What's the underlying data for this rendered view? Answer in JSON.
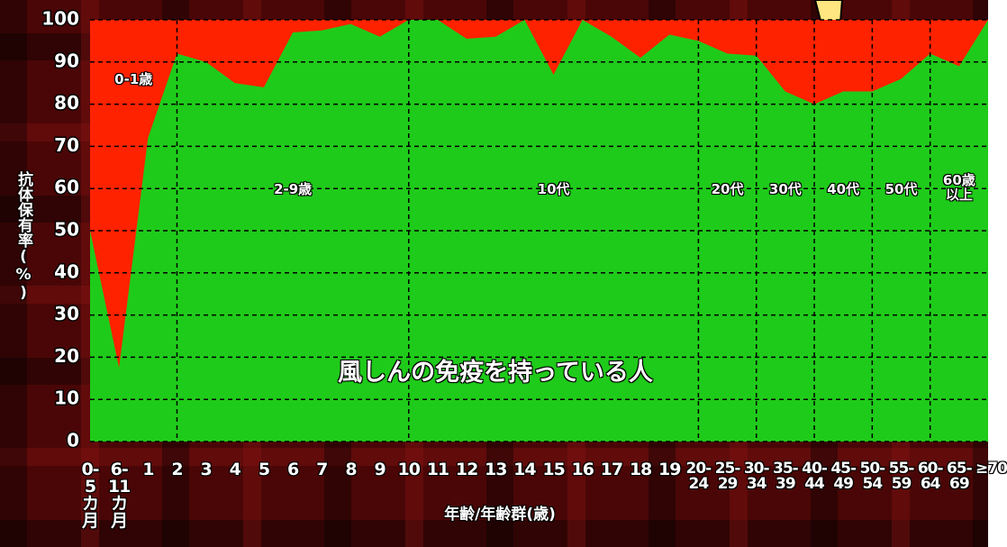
{
  "chart_data": {
    "type": "area",
    "y_label": "抗体保有率(%)",
    "x_label": "年齢/年齢群(歳)",
    "categories": [
      "0-5カ月",
      "6-11カ月",
      "1",
      "2",
      "3",
      "4",
      "5",
      "6",
      "7",
      "8",
      "9",
      "10",
      "11",
      "12",
      "13",
      "14",
      "15",
      "16",
      "17",
      "18",
      "19",
      "20-24",
      "25-29",
      "30-34",
      "35-39",
      "40-44",
      "45-49",
      "50-54",
      "55-59",
      "60-64",
      "65-69",
      "≥70"
    ],
    "series": [
      {
        "name": "風しんの免疫を持っている人",
        "color": "#1fcb1a",
        "values": [
          50,
          17.5,
          72,
          92,
          90,
          85,
          84,
          97,
          97.5,
          99,
          96,
          100,
          100,
          95.5,
          96,
          100,
          87,
          100,
          96,
          91,
          96.5,
          95,
          92,
          91.5,
          83,
          80,
          83,
          83,
          86,
          92,
          89,
          100
        ]
      }
    ],
    "background_color": "#ff2200",
    "groups": [
      "0-1歳",
      "2-9歳",
      "10代",
      "20代",
      "30代",
      "40代",
      "50代",
      "60歳\n以上"
    ],
    "ylim": [
      0,
      100
    ],
    "yticks": [
      0,
      10,
      20,
      30,
      40,
      50,
      60,
      70,
      80,
      90,
      100
    ],
    "grid": true
  }
}
